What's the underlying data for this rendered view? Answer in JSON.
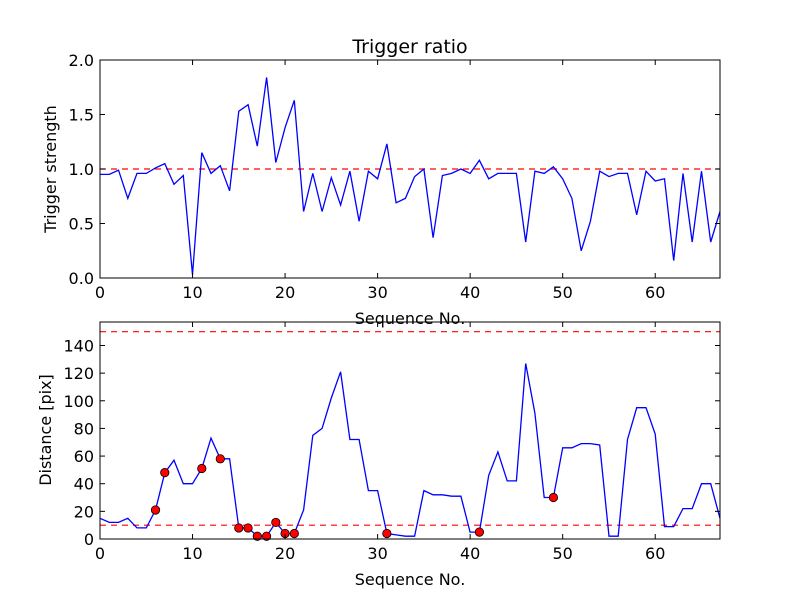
{
  "chart_data": [
    {
      "type": "line",
      "title": "Trigger ratio",
      "xlabel": "Sequence No.",
      "ylabel": "Trigger strength",
      "xlim": [
        0,
        67
      ],
      "ylim": [
        0,
        2.0
      ],
      "xticks": [
        "0",
        "10",
        "20",
        "30",
        "40",
        "50",
        "60"
      ],
      "yticks": [
        "0.0",
        "0.5",
        "1.0",
        "1.5",
        "2.0"
      ],
      "grid": false,
      "line_color": "#0000ff",
      "threshold_color": "#ff0000",
      "thresholds": [
        1.0
      ],
      "series": [
        {
          "x": [
            0,
            1,
            2,
            3,
            4,
            5,
            6,
            7,
            8,
            9,
            10,
            11,
            12,
            13,
            14,
            15,
            16,
            17,
            18,
            19,
            20,
            21,
            22,
            23,
            24,
            25,
            26,
            27,
            28,
            29,
            30,
            31,
            32,
            33,
            34,
            35,
            36,
            37,
            38,
            39,
            40,
            41,
            42,
            43,
            44,
            45,
            46,
            47,
            48,
            49,
            50,
            51,
            52,
            53,
            54,
            55,
            56,
            57,
            58,
            59,
            60,
            61,
            62,
            63,
            64,
            65,
            66,
            67
          ],
          "values": [
            0.95,
            0.95,
            0.99,
            0.73,
            0.96,
            0.96,
            1.01,
            1.05,
            0.86,
            0.94,
            0.03,
            1.15,
            0.96,
            1.03,
            0.8,
            1.53,
            1.59,
            1.21,
            1.84,
            1.06,
            1.38,
            1.63,
            0.61,
            0.96,
            0.61,
            0.92,
            0.67,
            0.98,
            0.52,
            0.98,
            0.91,
            1.23,
            0.69,
            0.73,
            0.93,
            1.0,
            0.37,
            0.94,
            0.96,
            1.0,
            0.96,
            1.08,
            0.91,
            0.96,
            0.96,
            0.96,
            0.33,
            0.98,
            0.96,
            1.02,
            0.91,
            0.73,
            0.25,
            0.52,
            0.98,
            0.93,
            0.96,
            0.96,
            0.58,
            0.98,
            0.89,
            0.91,
            0.16,
            0.96,
            0.33,
            0.98,
            0.33,
            0.61
          ]
        }
      ]
    },
    {
      "type": "line",
      "title": "",
      "xlabel": "Sequence No.",
      "ylabel": "Distance [pix]",
      "xlim": [
        0,
        67
      ],
      "ylim": [
        0,
        157
      ],
      "xticks": [
        "0",
        "10",
        "20",
        "30",
        "40",
        "50",
        "60"
      ],
      "yticks": [
        "0",
        "20",
        "40",
        "60",
        "80",
        "100",
        "120",
        "140"
      ],
      "grid": false,
      "line_color": "#0000ff",
      "threshold_color": "#ff0000",
      "marker_color": "#ff0000",
      "thresholds": [
        10,
        150
      ],
      "series": [
        {
          "x": [
            0,
            1,
            2,
            3,
            4,
            5,
            6,
            7,
            8,
            9,
            10,
            11,
            12,
            13,
            14,
            15,
            16,
            17,
            18,
            19,
            20,
            21,
            22,
            23,
            24,
            25,
            26,
            27,
            28,
            29,
            30,
            31,
            32,
            33,
            34,
            35,
            36,
            37,
            38,
            39,
            40,
            41,
            42,
            43,
            44,
            45,
            46,
            47,
            48,
            49,
            50,
            51,
            52,
            53,
            54,
            55,
            56,
            57,
            58,
            59,
            60,
            61,
            62,
            63,
            64,
            65,
            66,
            67
          ],
          "values": [
            15,
            12,
            12,
            15,
            8,
            8,
            21,
            48,
            57,
            40,
            40,
            51,
            73,
            58,
            58,
            8,
            8,
            2,
            2,
            12,
            4,
            4,
            21,
            75,
            80,
            102,
            121,
            72,
            72,
            35,
            35,
            4,
            3,
            2,
            2,
            35,
            32,
            32,
            31,
            31,
            5,
            5,
            46,
            63,
            42,
            42,
            127,
            91,
            30,
            30,
            66,
            66,
            69,
            69,
            68,
            2,
            2,
            72,
            95,
            95,
            76,
            9,
            9,
            22,
            22,
            40,
            40,
            15
          ]
        }
      ],
      "markers": {
        "x": [
          6,
          7,
          11,
          13,
          15,
          16,
          17,
          18,
          19,
          20,
          21,
          31,
          41,
          49
        ],
        "values": [
          21,
          48,
          51,
          58,
          8,
          8,
          2,
          2,
          12,
          4,
          4,
          4,
          5,
          30
        ]
      }
    }
  ]
}
